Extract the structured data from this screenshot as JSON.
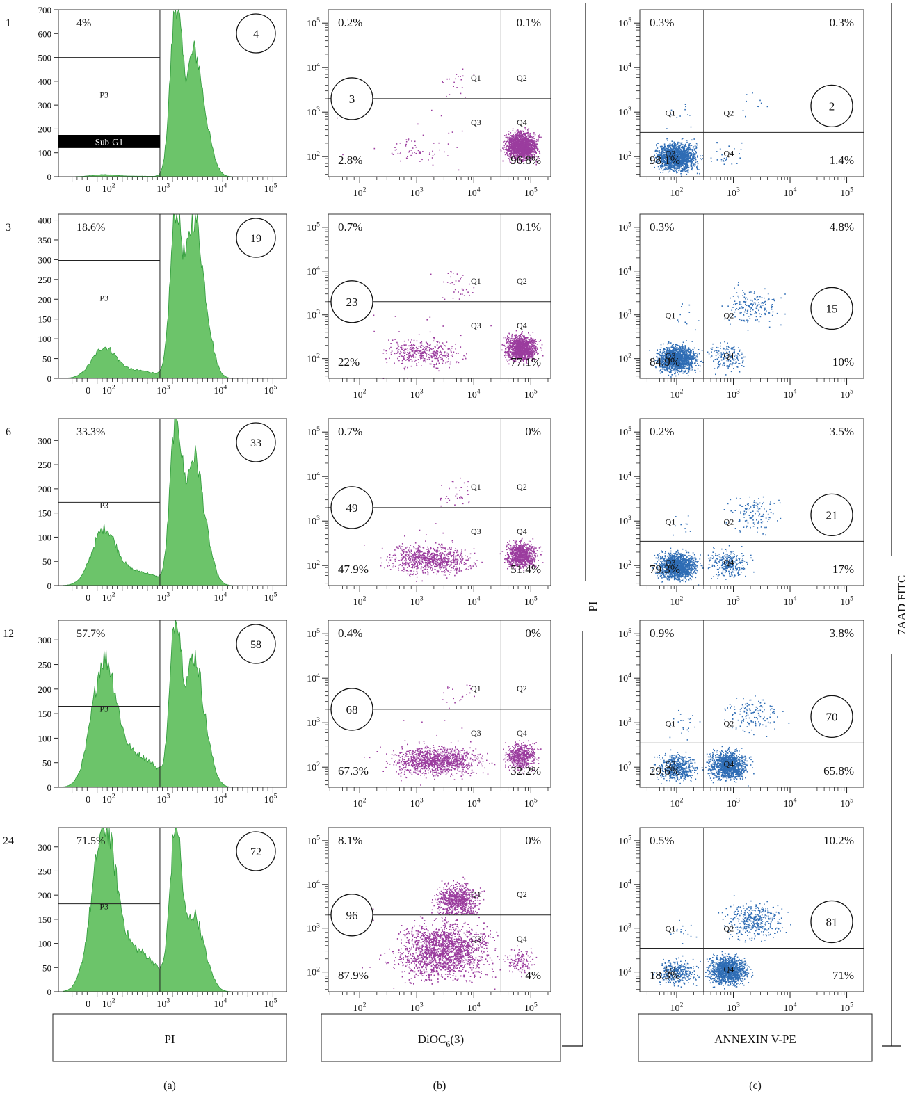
{
  "figure": {
    "column_labels": [
      "(a)",
      "(b)",
      "(c)"
    ],
    "column_axis_labels": [
      "PI",
      "DiOC6(3)",
      "ANNEXIN V-PE"
    ],
    "side_labels": [
      "PI",
      "7AAD FITC"
    ],
    "row_labels": [
      "1",
      "3",
      "6",
      "12",
      "24"
    ]
  },
  "chart_data": [
    {
      "type": "histogram",
      "column": "a",
      "row": "1",
      "gate_label": "P3",
      "band_label": "Sub-G1",
      "gate_percent": "4%",
      "circle_value": "4",
      "yticks": [
        0,
        100,
        200,
        300,
        400,
        500,
        600,
        700
      ],
      "ylim": [
        0,
        700
      ],
      "xticks": [
        "0",
        "10^2",
        "10^3",
        "10^4",
        "10^5"
      ],
      "subG1_peak": 8,
      "g1_peak": 700,
      "g2_peak": 500,
      "gate_level": 500,
      "sub_band": [
        120,
        175
      ]
    },
    {
      "type": "histogram",
      "column": "a",
      "row": "3",
      "gate_label": "P3",
      "gate_percent": "18.6%",
      "circle_value": "19",
      "yticks": [
        0,
        50,
        100,
        150,
        200,
        250,
        300,
        350,
        400
      ],
      "ylim": [
        0,
        415
      ],
      "xticks": [
        "0",
        "10^2",
        "10^3",
        "10^4",
        "10^5"
      ],
      "subG1_peak": 75,
      "g1_peak": 410,
      "g2_peak": 390,
      "gate_level": 298
    },
    {
      "type": "histogram",
      "column": "a",
      "row": "6",
      "gate_label": "P3",
      "gate_percent": "33.3%",
      "circle_value": "33",
      "yticks": [
        0,
        50,
        100,
        150,
        200,
        250,
        300
      ],
      "ylim": [
        0,
        345
      ],
      "xticks": [
        "0",
        "10^2",
        "10^3",
        "10^4",
        "10^5"
      ],
      "subG1_peak": 112,
      "g1_peak": 340,
      "g2_peak": 255,
      "gate_level": 172
    },
    {
      "type": "histogram",
      "column": "a",
      "row": "12",
      "gate_label": "P3",
      "gate_percent": "57.7%",
      "circle_value": "58",
      "yticks": [
        0,
        50,
        100,
        150,
        200,
        250,
        300
      ],
      "ylim": [
        0,
        340
      ],
      "xticks": [
        "0",
        "10^2",
        "10^3",
        "10^4",
        "10^5"
      ],
      "subG1_peak": 250,
      "g1_peak": 335,
      "g2_peak": 255,
      "gate_level": 165
    },
    {
      "type": "histogram",
      "column": "a",
      "row": "24",
      "gate_label": "P3",
      "gate_percent": "71.5%",
      "circle_value": "72",
      "yticks": [
        0,
        50,
        100,
        150,
        200,
        250,
        300
      ],
      "ylim": [
        0,
        340
      ],
      "xticks": [
        "0",
        "10^2",
        "10^3",
        "10^4",
        "10^5"
      ],
      "subG1_peak": 325,
      "g1_peak": 338,
      "g2_peak": 150,
      "gate_level": 182
    },
    {
      "type": "scatter",
      "column": "b",
      "row": "1",
      "color": "#9b3c9e",
      "quadrants": {
        "Q1": "0.2%",
        "Q2": "0.1%",
        "Q3": "2.8%",
        "Q4": "96.8%"
      },
      "quadrant_names": [
        "Q1",
        "Q2",
        "Q3",
        "Q4"
      ],
      "circle_value": "3",
      "xticks": [
        "10^2",
        "10^3",
        "10^4",
        "10^5"
      ],
      "yticks": [
        "10^2",
        "10^3",
        "10^4",
        "10^5"
      ],
      "gate_x": 30000,
      "gate_y": 2000
    },
    {
      "type": "scatter",
      "column": "b",
      "row": "3",
      "color": "#9b3c9e",
      "quadrants": {
        "Q1": "0.7%",
        "Q2": "0.1%",
        "Q3": "22%",
        "Q4": "77.1%"
      },
      "quadrant_names": [
        "Q1",
        "Q2",
        "Q3",
        "Q4"
      ],
      "circle_value": "23",
      "xticks": [
        "10^2",
        "10^3",
        "10^4",
        "10^5"
      ],
      "yticks": [
        "10^2",
        "10^3",
        "10^4",
        "10^5"
      ],
      "gate_x": 30000,
      "gate_y": 2000
    },
    {
      "type": "scatter",
      "column": "b",
      "row": "6",
      "color": "#9b3c9e",
      "quadrants": {
        "Q1": "0.7%",
        "Q2": "0%",
        "Q3": "47.9%",
        "Q4": "51.4%"
      },
      "quadrant_names": [
        "Q1",
        "Q2",
        "Q3",
        "Q4"
      ],
      "circle_value": "49",
      "xticks": [
        "10^2",
        "10^3",
        "10^4",
        "10^5"
      ],
      "yticks": [
        "10^2",
        "10^3",
        "10^4",
        "10^5"
      ],
      "gate_x": 30000,
      "gate_y": 2000
    },
    {
      "type": "scatter",
      "column": "b",
      "row": "12",
      "color": "#9b3c9e",
      "quadrants": {
        "Q1": "0.4%",
        "Q2": "0%",
        "Q3": "67.3%",
        "Q4": "32.2%"
      },
      "quadrant_names": [
        "Q1",
        "Q2",
        "Q3",
        "Q4"
      ],
      "circle_value": "68",
      "xticks": [
        "10^2",
        "10^3",
        "10^4",
        "10^5"
      ],
      "yticks": [
        "10^2",
        "10^3",
        "10^4",
        "10^5"
      ],
      "gate_x": 30000,
      "gate_y": 2000
    },
    {
      "type": "scatter",
      "column": "b",
      "row": "24",
      "color": "#9b3c9e",
      "quadrants": {
        "Q1": "8.1%",
        "Q2": "0%",
        "Q3": "87.9%",
        "Q4": "4%"
      },
      "quadrant_names": [
        "Q1",
        "Q2",
        "Q3",
        "Q4"
      ],
      "circle_value": "96",
      "xticks": [
        "10^2",
        "10^3",
        "10^4",
        "10^5"
      ],
      "yticks": [
        "10^2",
        "10^3",
        "10^4",
        "10^5"
      ],
      "gate_x": 30000,
      "gate_y": 2000
    },
    {
      "type": "scatter",
      "column": "c",
      "row": "1",
      "color": "#2f6db5",
      "quadrants": {
        "Q1": "0.3%",
        "Q2": "0.3%",
        "Q3": "98.1%",
        "Q4": "1.4%"
      },
      "quadrant_names": [
        "Q1",
        "Q2",
        "Q3",
        "Q4"
      ],
      "circle_value": "2",
      "xticks": [
        "10^2",
        "10^3",
        "10^4",
        "10^5"
      ],
      "yticks": [
        "10^2",
        "10^3",
        "10^4",
        "10^5"
      ],
      "gate_x": 300,
      "gate_y": 350
    },
    {
      "type": "scatter",
      "column": "c",
      "row": "3",
      "color": "#2f6db5",
      "quadrants": {
        "Q1": "0.3%",
        "Q2": "4.8%",
        "Q3": "84.9%",
        "Q4": "10%"
      },
      "quadrant_names": [
        "Q1",
        "Q2",
        "Q3",
        "Q4"
      ],
      "circle_value": "15",
      "xticks": [
        "10^2",
        "10^3",
        "10^4",
        "10^5"
      ],
      "yticks": [
        "10^2",
        "10^3",
        "10^4",
        "10^5"
      ],
      "gate_x": 300,
      "gate_y": 350
    },
    {
      "type": "scatter",
      "column": "c",
      "row": "6",
      "color": "#2f6db5",
      "quadrants": {
        "Q1": "0.2%",
        "Q2": "3.5%",
        "Q3": "79.3%",
        "Q4": "17%"
      },
      "quadrant_names": [
        "Q1",
        "Q2",
        "Q3",
        "Q4"
      ],
      "circle_value": "21",
      "xticks": [
        "10^2",
        "10^3",
        "10^4",
        "10^5"
      ],
      "yticks": [
        "10^2",
        "10^3",
        "10^4",
        "10^5"
      ],
      "gate_x": 300,
      "gate_y": 350
    },
    {
      "type": "scatter",
      "column": "c",
      "row": "12",
      "color": "#2f6db5",
      "quadrants": {
        "Q1": "0.9%",
        "Q2": "3.8%",
        "Q3": "29.6%",
        "Q4": "65.8%"
      },
      "quadrant_names": [
        "Q1",
        "Q2",
        "Q3",
        "Q4"
      ],
      "circle_value": "70",
      "xticks": [
        "10^2",
        "10^3",
        "10^4",
        "10^5"
      ],
      "yticks": [
        "10^2",
        "10^3",
        "10^4",
        "10^5"
      ],
      "gate_x": 300,
      "gate_y": 350
    },
    {
      "type": "scatter",
      "column": "c",
      "row": "24",
      "color": "#2f6db5",
      "quadrants": {
        "Q1": "0.5%",
        "Q2": "10.2%",
        "Q3": "18.3%",
        "Q4": "71%"
      },
      "quadrant_names": [
        "Q1",
        "Q2",
        "Q3",
        "Q4"
      ],
      "circle_value": "81",
      "xticks": [
        "10^2",
        "10^3",
        "10^4",
        "10^5"
      ],
      "yticks": [
        "10^2",
        "10^3",
        "10^4",
        "10^5"
      ],
      "gate_x": 300,
      "gate_y": 350
    }
  ]
}
